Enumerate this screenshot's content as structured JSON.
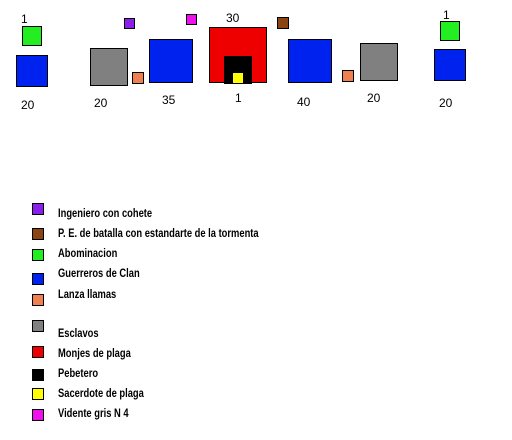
{
  "colors": {
    "ingeniero": "#8b1eea",
    "portaestandarte": "#8b4513",
    "abominacion": "#22ee22",
    "guerreros": "#0022ee",
    "lanza_llamas": "#f08050",
    "esclavos": "#808080",
    "monjes": "#ee0000",
    "pebetero": "#000000",
    "sacerdote": "#ffff00",
    "vidente": "#ee11ee"
  },
  "formation": {
    "labels": {
      "abom_left_count": "1",
      "clan_left_count": "20",
      "slaves_left_count": "20",
      "clan_center_left_count": "35",
      "monks_count": "30",
      "priest_count": "1",
      "clan_center_right_count": "40",
      "slaves_right_count": "20",
      "abom_right_count": "1",
      "clan_right_count": "20"
    }
  },
  "legend": {
    "items": [
      {
        "color": "#8b1eea",
        "label": "Ingeniero con cohete"
      },
      {
        "color": "#8b4513",
        "label": "P. E. de batalla con estandarte de la tormenta"
      },
      {
        "color": "#22ee22",
        "label": "Abominacion"
      },
      {
        "color": "#0022ee",
        "label": "Guerreros de Clan"
      },
      {
        "color": "#f08050",
        "label": "Lanza llamas"
      },
      {
        "color": "#808080",
        "label": "Esclavos"
      },
      {
        "color": "#ee0000",
        "label": "Monjes de plaga"
      },
      {
        "color": "#000000",
        "label": "Pebetero"
      },
      {
        "color": "#ffff00",
        "label": "Sacerdote de plaga"
      },
      {
        "color": "#ee11ee",
        "label": "Vidente gris N 4"
      }
    ]
  }
}
